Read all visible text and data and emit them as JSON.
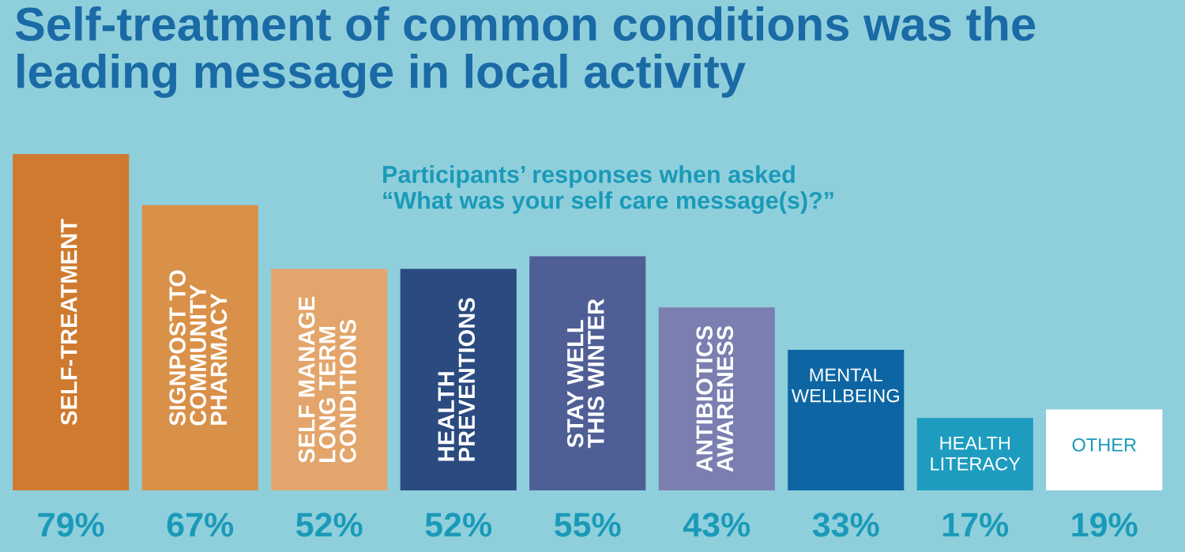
{
  "chart_data": {
    "type": "bar",
    "title": "Self-treatment of common conditions was the\nleading message in local activity",
    "subtitle": "Participants’ responses when asked\n“What was your self care message(s)?”",
    "categories": [
      "SELF-TREATMENT",
      "SIGNPOST TO\nCOMMUNITY\nPHARMACY",
      "SELF MANAGE\nLONG TERM\nCONDITIONS",
      "HEALTH\nPREVENTIONS",
      "STAY WELL\nTHIS WINTER",
      "ANTIBIOTICS\nAWARENESS",
      "MENTAL\nWELLBEING",
      "HEALTH\nLITERACY",
      "OTHER"
    ],
    "values": [
      79,
      67,
      52,
      52,
      55,
      43,
      33,
      17,
      19
    ],
    "value_labels": [
      "79%",
      "67%",
      "52%",
      "52%",
      "55%",
      "43%",
      "33%",
      "17%",
      "19%"
    ],
    "colors": [
      "#cf7a2e",
      "#d99048",
      "#e3a56b",
      "#2a4a80",
      "#4f5f96",
      "#7a7fb0",
      "#0d66a3",
      "#1d9cbf",
      "#ffffff"
    ],
    "legend": false
  }
}
